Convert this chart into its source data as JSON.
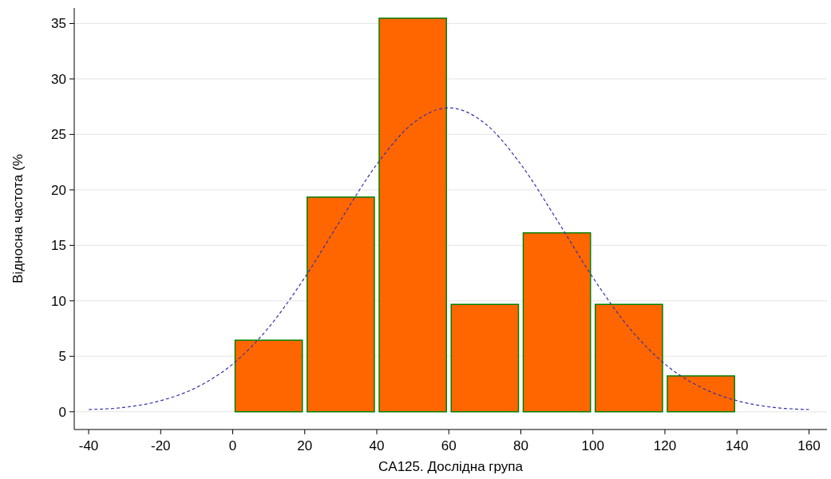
{
  "chart_data": {
    "type": "histogram",
    "xlabel": "CA125. Дослідна група",
    "ylabel": "Відносна частота (%",
    "bins": [
      0,
      20,
      40,
      60,
      80,
      100,
      120,
      140
    ],
    "series": [
      {
        "color": "#ff6600",
        "values": [
          6.45,
          19.35,
          35.48,
          9.68,
          16.13,
          9.68,
          3.23
        ]
      },
      {
        "type": "line",
        "color": "#3333aa",
        "line_style": "dashed",
        "x": [
          -40,
          -30,
          -20,
          -10,
          0,
          10,
          20,
          30,
          40,
          50,
          60,
          70,
          80,
          90,
          100,
          110,
          120,
          130,
          140,
          150,
          160
        ],
        "values": [
          0.2,
          0.4,
          1.0,
          2.2,
          4.3,
          7.6,
          12.1,
          17.3,
          22.3,
          26.0,
          27.4,
          26.0,
          22.3,
          17.3,
          12.1,
          7.6,
          4.3,
          2.2,
          1.0,
          0.4,
          0.2
        ]
      }
    ],
    "xlim": [
      -44,
      165
    ],
    "ylim": [
      -1.6,
      36.4
    ],
    "xticks": [
      -40,
      -20,
      0,
      20,
      40,
      60,
      80,
      100,
      120,
      140,
      160
    ],
    "yticks": [
      0,
      5,
      10,
      15,
      20,
      25,
      30,
      35
    ],
    "grid": "y"
  }
}
